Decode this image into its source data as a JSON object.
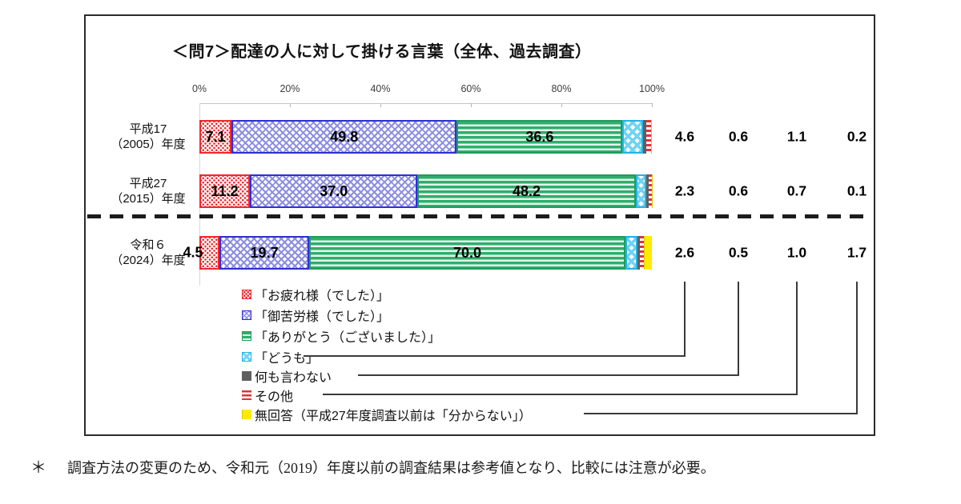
{
  "chart_data": {
    "type": "bar",
    "stacked": true,
    "orientation": "horizontal",
    "title": "＜問7＞配達の人に対して掛ける言葉（全体、過去調査）",
    "xlabel": "",
    "xlim": [
      0,
      100
    ],
    "x_ticks": [
      "0%",
      "20%",
      "40%",
      "60%",
      "80%",
      "100%"
    ],
    "legend": [
      "「お疲れ様（でした）」",
      "「御苦労様（でした）」",
      "「ありがとう（ございました）」",
      "「どうも」",
      "何も言わない",
      "その他",
      "無回答（平成27年度調査以前は「分からない」）"
    ],
    "legend_keys": [
      "otsukaresama",
      "gokurousama",
      "arigatou",
      "doumo",
      "say-nothing",
      "other",
      "no-answer"
    ],
    "rows": [
      {
        "label_line1": "平成17",
        "label_line2": "（2005）年度",
        "values": [
          7.1,
          49.8,
          36.6,
          4.6,
          0.6,
          1.1,
          0.2
        ]
      },
      {
        "label_line1": "平成27",
        "label_line2": "（2015）年度",
        "values": [
          11.2,
          37.0,
          48.2,
          2.3,
          0.6,
          0.7,
          0.1
        ]
      },
      {
        "label_line1": "令和６",
        "label_line2": "（2024）年度",
        "values": [
          4.5,
          19.7,
          70.0,
          2.6,
          0.5,
          1.0,
          1.7
        ]
      }
    ],
    "colors": {
      "otsukaresama": "#f0282d",
      "gokurousama": "#2f2fd3",
      "arigatou": "#2fae6c",
      "doumo": "#27b2e4",
      "say_nothing": "#5f5f5f",
      "other": "#e23137",
      "no_answer": "#ffeb00"
    }
  },
  "footnote": {
    "marker": "＊",
    "text": "調査方法の変更のため、令和元（2019）年度以前の調査結果は参考値となり、比較には注意が必要。"
  }
}
